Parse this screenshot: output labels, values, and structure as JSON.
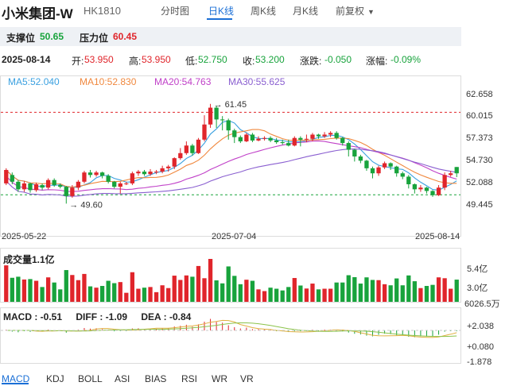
{
  "header": {
    "name": "小米集团-W",
    "code": "HK1810",
    "tabs": [
      "分时图",
      "日K线",
      "周K线",
      "月K线",
      "前复权"
    ],
    "active_tab": "日K线"
  },
  "levels": {
    "support_label": "支撑位",
    "support_value": "50.65",
    "resist_label": "压力位",
    "resist_value": "60.45"
  },
  "quote": {
    "date": "2025-08-14",
    "open_label": "开:",
    "open": "53.950",
    "high_label": "高:",
    "high": "53.950",
    "low_label": "低:",
    "low": "52.750",
    "close_label": "收:",
    "close": "53.200",
    "change_label": "涨跌:",
    "change": "-0.050",
    "pct_label": "涨幅:",
    "pct": "-0.09%"
  },
  "ma": {
    "ma5": "MA5:52.040",
    "ma10": "MA10:52.830",
    "ma20": "MA20:54.763",
    "ma30": "MA30:55.625",
    "colors": {
      "ma5": "#3aa0e0",
      "ma10": "#f0883e",
      "ma20": "#c040c8",
      "ma30": "#8a5fd0"
    }
  },
  "price_axis": [
    "62.658",
    "60.015",
    "57.373",
    "54.730",
    "52.088",
    "49.445"
  ],
  "dates": [
    "2025-05-22",
    "2025-07-04",
    "2025-08-14"
  ],
  "annotations": {
    "high": "61.45",
    "low": "49.60"
  },
  "volume": {
    "title": "成交量1.1亿",
    "axis": [
      "5.4亿",
      "3.0亿",
      "6026.5万"
    ]
  },
  "macd": {
    "macd": "MACD : -0.51",
    "diff": "DIFF : -1.09",
    "dea": "DEA : -0.84",
    "axis": [
      "+2.038",
      "+0.080",
      "-1.878"
    ]
  },
  "indicator_tabs": [
    "MACD",
    "KDJ",
    "BOLL",
    "ASI",
    "BIAS",
    "RSI",
    "WR",
    "VR"
  ],
  "active_indicator": "MACD",
  "chart_data": {
    "type": "candlestick",
    "candles": [
      [
        52.0,
        53.6,
        51.8,
        53.8
      ],
      [
        53.0,
        52.2,
        51.9,
        53.3
      ],
      [
        52.2,
        51.3,
        51.0,
        52.4
      ],
      [
        51.3,
        52.0,
        51.0,
        52.3
      ],
      [
        52.0,
        51.2,
        50.9,
        52.1
      ],
      [
        51.2,
        51.9,
        51.0,
        52.1
      ],
      [
        51.8,
        51.5,
        51.2,
        52.0
      ],
      [
        51.5,
        52.4,
        51.3,
        52.6
      ],
      [
        52.4,
        51.8,
        51.6,
        52.6
      ],
      [
        51.8,
        51.6,
        51.4,
        52.0
      ],
      [
        51.6,
        50.5,
        49.6,
        51.7
      ],
      [
        50.5,
        51.5,
        50.3,
        51.8
      ],
      [
        51.5,
        52.2,
        51.2,
        52.4
      ],
      [
        52.2,
        53.3,
        52.0,
        53.5
      ],
      [
        53.3,
        53.0,
        52.7,
        53.6
      ],
      [
        53.0,
        53.3,
        52.8,
        53.5
      ],
      [
        53.3,
        52.9,
        52.6,
        53.4
      ],
      [
        52.9,
        52.2,
        52.0,
        53.1
      ],
      [
        52.2,
        51.6,
        51.4,
        52.3
      ],
      [
        51.6,
        52.0,
        50.8,
        52.2
      ],
      [
        52.0,
        52.0,
        51.8,
        52.2
      ],
      [
        52.0,
        53.2,
        51.8,
        53.4
      ],
      [
        53.2,
        53.4,
        52.9,
        53.6
      ],
      [
        53.4,
        53.1,
        52.9,
        53.6
      ],
      [
        53.1,
        53.4,
        52.9,
        53.7
      ],
      [
        53.4,
        53.4,
        53.1,
        53.6
      ],
      [
        53.4,
        53.8,
        53.2,
        54.1
      ],
      [
        53.8,
        54.0,
        53.4,
        54.2
      ],
      [
        54.0,
        55.0,
        53.7,
        55.1
      ],
      [
        55.0,
        55.6,
        54.8,
        56.2
      ],
      [
        55.6,
        56.5,
        55.4,
        57.0
      ],
      [
        56.5,
        55.6,
        55.3,
        56.7
      ],
      [
        55.6,
        57.2,
        55.5,
        57.4
      ],
      [
        57.2,
        59.0,
        57.0,
        60.1
      ],
      [
        59.0,
        61.0,
        58.6,
        61.45
      ],
      [
        61.0,
        59.6,
        58.6,
        61.2
      ],
      [
        59.6,
        59.5,
        58.3,
        60.0
      ],
      [
        59.5,
        58.3,
        57.2,
        59.7
      ],
      [
        58.3,
        57.5,
        56.8,
        58.5
      ],
      [
        57.5,
        57.0,
        56.8,
        57.7
      ],
      [
        57.0,
        57.8,
        56.9,
        58.0
      ],
      [
        57.8,
        57.1,
        56.9,
        58.0
      ],
      [
        57.1,
        57.3,
        57.0,
        57.6
      ],
      [
        57.3,
        57.4,
        57.1,
        57.6
      ],
      [
        57.4,
        57.1,
        56.9,
        57.6
      ],
      [
        57.1,
        56.9,
        56.7,
        57.4
      ],
      [
        56.9,
        56.8,
        56.6,
        57.2
      ],
      [
        56.8,
        56.5,
        56.4,
        57.2
      ],
      [
        56.5,
        57.4,
        56.4,
        57.6
      ],
      [
        57.4,
        57.2,
        56.4,
        57.6
      ],
      [
        57.2,
        57.3,
        56.9,
        57.8
      ],
      [
        57.3,
        57.8,
        57.0,
        58.0
      ],
      [
        57.8,
        57.6,
        57.3,
        57.9
      ],
      [
        57.6,
        57.8,
        57.4,
        58.1
      ],
      [
        57.8,
        58.0,
        57.5,
        58.2
      ],
      [
        58.0,
        57.4,
        57.2,
        58.2
      ],
      [
        57.4,
        56.8,
        56.5,
        57.5
      ],
      [
        56.8,
        56.0,
        55.2,
        57.0
      ],
      [
        56.0,
        55.2,
        54.6,
        56.1
      ],
      [
        55.2,
        54.7,
        54.4,
        55.4
      ],
      [
        54.7,
        53.8,
        53.5,
        54.8
      ],
      [
        53.8,
        53.2,
        52.6,
        54.0
      ],
      [
        53.2,
        53.9,
        52.9,
        54.1
      ],
      [
        53.9,
        54.4,
        53.7,
        54.6
      ],
      [
        54.4,
        54.0,
        53.6,
        54.5
      ],
      [
        54.0,
        53.2,
        52.8,
        54.1
      ],
      [
        53.2,
        52.8,
        52.5,
        53.4
      ],
      [
        52.8,
        51.9,
        51.4,
        53.0
      ],
      [
        51.9,
        51.3,
        50.8,
        52.0
      ],
      [
        51.3,
        51.5,
        51.0,
        51.8
      ],
      [
        51.5,
        51.1,
        50.8,
        51.6
      ],
      [
        51.1,
        50.6,
        50.4,
        51.2
      ],
      [
        50.6,
        51.5,
        50.5,
        51.8
      ],
      [
        51.5,
        53.0,
        51.2,
        53.3
      ],
      [
        53.0,
        53.2,
        52.8,
        53.5
      ],
      [
        53.95,
        53.2,
        52.75,
        53.95
      ]
    ],
    "ylim": [
      49.445,
      62.658
    ]
  }
}
